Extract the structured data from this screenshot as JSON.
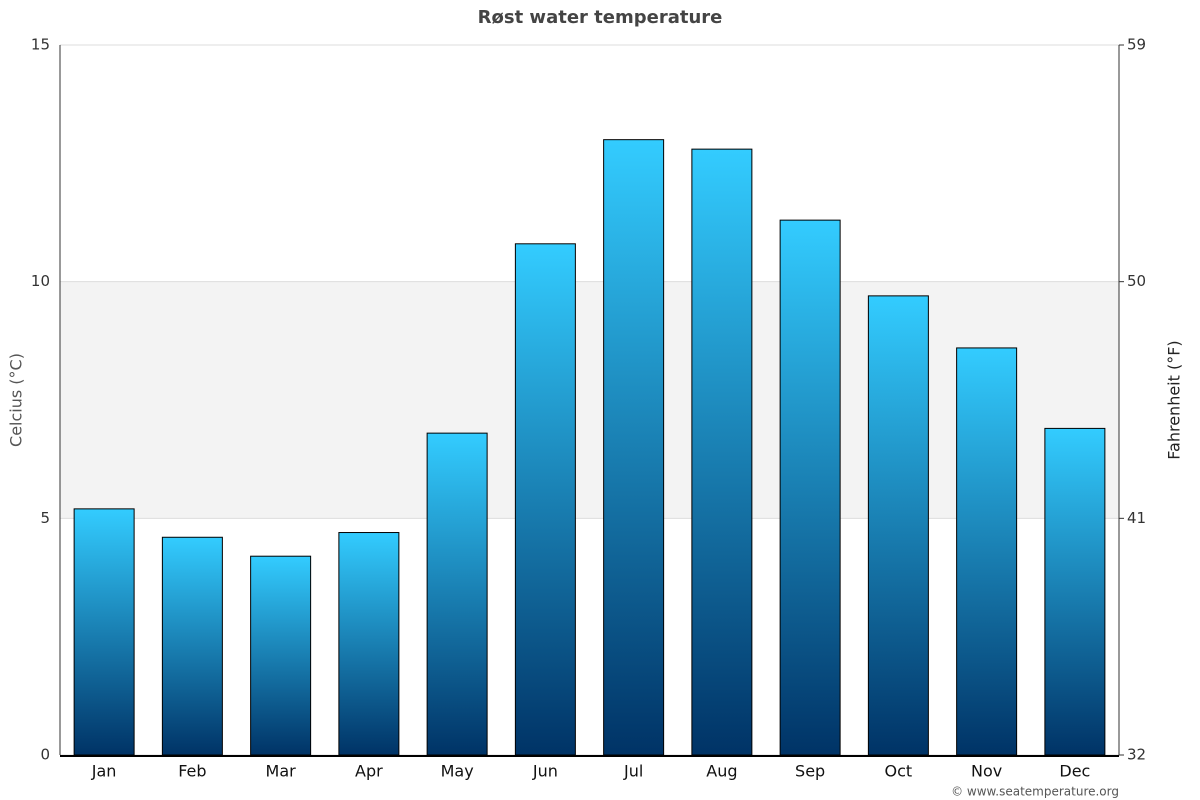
{
  "chart_data": {
    "type": "bar",
    "title": "Røst water temperature",
    "categories": [
      "Jan",
      "Feb",
      "Mar",
      "Apr",
      "May",
      "Jun",
      "Jul",
      "Aug",
      "Sep",
      "Oct",
      "Nov",
      "Dec"
    ],
    "values": [
      5.2,
      4.6,
      4.2,
      4.7,
      6.8,
      10.8,
      13.0,
      12.8,
      11.3,
      9.7,
      8.6,
      6.9
    ],
    "color": "#33ccff",
    "ylabel": "Celcius (°C)",
    "y2label": "Fahrenheit (°F)",
    "ylim": [
      0,
      15
    ],
    "yticks": [
      0,
      5,
      10,
      15
    ],
    "y2lim": [
      32,
      59
    ],
    "y2ticks": [
      32,
      41,
      50,
      59
    ],
    "grid": true,
    "source": "© www.seatemperature.org"
  }
}
